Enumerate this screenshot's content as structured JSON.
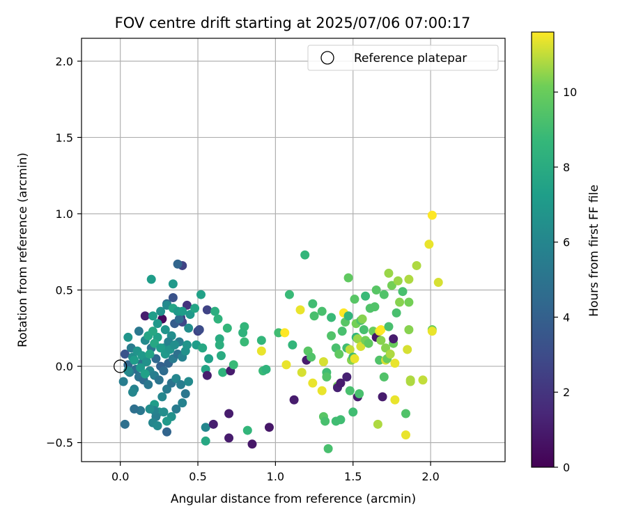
{
  "chart_data": {
    "type": "scatter",
    "title": "FOV centre drift starting at 2025/07/06 07:00:17",
    "xlabel": "Angular distance from reference (arcmin)",
    "ylabel": "Rotation from reference (arcmin)",
    "xlim": [
      -0.25,
      2.48
    ],
    "ylim": [
      -0.625,
      2.15
    ],
    "xticks": [
      0.0,
      0.5,
      1.0,
      1.5,
      2.0
    ],
    "xtick_labels": [
      "0.0",
      "0.5",
      "1.0",
      "1.5",
      "2.0"
    ],
    "yticks": [
      -0.5,
      0.0,
      0.5,
      1.0,
      1.5,
      2.0
    ],
    "ytick_labels": [
      "−0.5",
      "0.0",
      "0.5",
      "1.0",
      "1.5",
      "2.0"
    ],
    "grid": true,
    "legend": {
      "position": "top-right",
      "entries": [
        {
          "label": "Reference platepar",
          "marker": "open-circle"
        }
      ]
    },
    "reference_point": {
      "x": 0.0,
      "y": 0.0
    },
    "colorbar": {
      "label": "Hours from first FF file",
      "colormap": "viridis",
      "range": [
        0,
        11.6
      ],
      "ticks": [
        0,
        2,
        4,
        6,
        8,
        10
      ],
      "tick_labels": [
        "0",
        "2",
        "4",
        "6",
        "8",
        "10"
      ]
    },
    "points": [
      [
        0.27,
        0.31,
        0.3
      ],
      [
        0.16,
        0.33,
        1.1
      ],
      [
        0.43,
        0.4,
        1.9
      ],
      [
        0.39,
        0.32,
        2.4
      ],
      [
        0.4,
        0.29,
        2.8
      ],
      [
        0.4,
        0.66,
        2.6
      ],
      [
        0.37,
        0.67,
        4.2
      ],
      [
        0.5,
        0.23,
        2.6
      ],
      [
        0.51,
        0.24,
        3.0
      ],
      [
        0.56,
        0.37,
        2.6
      ],
      [
        0.34,
        0.45,
        3.3
      ],
      [
        0.35,
        0.28,
        3.8
      ],
      [
        0.38,
        0.31,
        4.5
      ],
      [
        0.3,
        0.41,
        4.8
      ],
      [
        0.03,
        0.08,
        3.4
      ],
      [
        0.05,
        0.01,
        4.4
      ],
      [
        0.1,
        -0.02,
        4.6
      ],
      [
        0.14,
        0.02,
        5.0
      ],
      [
        0.07,
        0.12,
        5.4
      ],
      [
        0.12,
        0.23,
        5.2
      ],
      [
        0.06,
        -0.04,
        5.6
      ],
      [
        0.02,
        -0.1,
        5.5
      ],
      [
        0.09,
        -0.15,
        5.8
      ],
      [
        0.08,
        -0.17,
        6.0
      ],
      [
        0.12,
        -0.07,
        5.0
      ],
      [
        0.15,
        -0.09,
        4.6
      ],
      [
        0.18,
        -0.12,
        5.2
      ],
      [
        0.16,
        0.17,
        6.2
      ],
      [
        0.2,
        0.12,
        5.0
      ],
      [
        0.23,
        0.05,
        4.4
      ],
      [
        0.26,
        0.0,
        4.0
      ],
      [
        0.28,
        -0.03,
        4.6
      ],
      [
        0.31,
        0.02,
        4.2
      ],
      [
        0.34,
        0.05,
        5.4
      ],
      [
        0.37,
        0.08,
        4.8
      ],
      [
        0.4,
        0.06,
        5.8
      ],
      [
        0.42,
        0.1,
        6.6
      ],
      [
        0.38,
        0.16,
        5.6
      ],
      [
        0.33,
        0.2,
        6.4
      ],
      [
        0.29,
        0.24,
        6.8
      ],
      [
        0.24,
        0.28,
        7.0
      ],
      [
        0.21,
        0.33,
        7.2
      ],
      [
        0.26,
        0.36,
        6.6
      ],
      [
        0.3,
        0.4,
        6.2
      ],
      [
        0.34,
        0.38,
        7.6
      ],
      [
        0.37,
        0.36,
        7.0
      ],
      [
        0.2,
        0.57,
        7.2
      ],
      [
        0.34,
        0.54,
        7.0
      ],
      [
        0.25,
        -0.3,
        6.8
      ],
      [
        0.22,
        -0.25,
        7.2
      ],
      [
        0.27,
        -0.2,
        6.0
      ],
      [
        0.3,
        -0.15,
        5.4
      ],
      [
        0.33,
        -0.11,
        5.0
      ],
      [
        0.36,
        -0.08,
        6.0
      ],
      [
        0.39,
        -0.12,
        5.6
      ],
      [
        0.42,
        -0.18,
        5.2
      ],
      [
        0.44,
        -0.1,
        6.2
      ],
      [
        0.4,
        -0.24,
        5.8
      ],
      [
        0.36,
        -0.28,
        5.4
      ],
      [
        0.33,
        -0.33,
        6.6
      ],
      [
        0.3,
        -0.36,
        7.0
      ],
      [
        0.28,
        -0.3,
        6.4
      ],
      [
        0.23,
        -0.33,
        5.6
      ],
      [
        0.21,
        -0.37,
        6.0
      ],
      [
        0.24,
        -0.39,
        6.2
      ],
      [
        0.3,
        -0.43,
        4.2
      ],
      [
        0.22,
        -0.29,
        5.8
      ],
      [
        0.19,
        -0.28,
        6.4
      ],
      [
        0.13,
        -0.29,
        5.2
      ],
      [
        0.09,
        -0.28,
        4.8
      ],
      [
        0.03,
        -0.38,
        4.8
      ],
      [
        0.05,
        -0.03,
        6.2
      ],
      [
        0.08,
        0.06,
        6.4
      ],
      [
        0.11,
        0.1,
        6.8
      ],
      [
        0.14,
        0.07,
        7.0
      ],
      [
        0.17,
        0.03,
        6.6
      ],
      [
        0.19,
        -0.03,
        6.0
      ],
      [
        0.22,
        -0.06,
        5.6
      ],
      [
        0.25,
        -0.09,
        5.0
      ],
      [
        0.28,
        0.12,
        6.6
      ],
      [
        0.31,
        0.16,
        5.8
      ],
      [
        0.24,
        0.19,
        7.4
      ],
      [
        0.22,
        0.15,
        7.8
      ],
      [
        0.19,
        0.08,
        7.6
      ],
      [
        0.26,
        0.12,
        7.2
      ],
      [
        0.29,
        0.08,
        7.0
      ],
      [
        0.32,
        0.11,
        6.8
      ],
      [
        0.35,
        0.14,
        6.4
      ],
      [
        0.05,
        0.19,
        6.8
      ],
      [
        0.09,
        0.04,
        7.2
      ],
      [
        0.13,
        -0.01,
        7.0
      ],
      [
        0.16,
        -0.05,
        7.4
      ],
      [
        0.18,
        0.2,
        7.6
      ],
      [
        0.21,
        0.23,
        7.8
      ],
      [
        0.4,
        0.36,
        7.2
      ],
      [
        0.45,
        0.34,
        7.0
      ],
      [
        0.48,
        0.38,
        7.6
      ],
      [
        0.43,
        0.14,
        6.8
      ],
      [
        0.44,
        0.25,
        6.4
      ],
      [
        0.49,
        0.14,
        7.2
      ],
      [
        0.52,
        0.47,
        7.4
      ],
      [
        0.53,
        0.12,
        7.8
      ],
      [
        0.55,
        -0.02,
        7.6
      ],
      [
        0.57,
        0.05,
        7.4
      ],
      [
        0.56,
        -0.06,
        1.1
      ],
      [
        0.55,
        -0.4,
        6.0
      ],
      [
        0.6,
        -0.38,
        1.1
      ],
      [
        0.55,
        -0.49,
        7.8
      ],
      [
        0.61,
        0.36,
        8.2
      ],
      [
        0.63,
        0.31,
        8.4
      ],
      [
        0.64,
        0.18,
        8.0
      ],
      [
        0.64,
        0.14,
        8.2
      ],
      [
        0.65,
        0.07,
        8.0
      ],
      [
        0.66,
        -0.04,
        8.4
      ],
      [
        0.69,
        0.25,
        8.6
      ],
      [
        0.71,
        -0.03,
        1.0
      ],
      [
        0.73,
        0.01,
        8.8
      ],
      [
        0.7,
        -0.31,
        1.0
      ],
      [
        0.7,
        -0.47,
        1.0
      ],
      [
        0.8,
        0.26,
        8.6
      ],
      [
        0.79,
        0.22,
        8.4
      ],
      [
        0.8,
        0.16,
        8.8
      ],
      [
        0.82,
        -0.42,
        8.6
      ],
      [
        0.85,
        -0.51,
        0.8
      ],
      [
        0.91,
        0.17,
        8.6
      ],
      [
        0.92,
        -0.03,
        8.8
      ],
      [
        0.94,
        -0.02,
        8.4
      ],
      [
        0.96,
        -0.4,
        0.8
      ],
      [
        0.91,
        0.1,
        11.4
      ],
      [
        1.02,
        0.22,
        9.0
      ],
      [
        1.06,
        0.22,
        11.6
      ],
      [
        1.07,
        0.01,
        11.4
      ],
      [
        1.09,
        0.47,
        8.8
      ],
      [
        1.11,
        0.14,
        8.6
      ],
      [
        1.12,
        -0.22,
        1.0
      ],
      [
        1.19,
        0.73,
        8.6
      ],
      [
        1.16,
        0.37,
        11.4
      ],
      [
        1.17,
        -0.04,
        11.2
      ],
      [
        1.21,
        0.1,
        9.6
      ],
      [
        1.2,
        0.04,
        1.0
      ],
      [
        1.23,
        0.06,
        9.4
      ],
      [
        1.24,
        0.41,
        9.0
      ],
      [
        1.25,
        0.33,
        9.2
      ],
      [
        1.24,
        -0.11,
        11.4
      ],
      [
        1.3,
        0.36,
        9.2
      ],
      [
        1.31,
        0.03,
        11.2
      ],
      [
        1.3,
        -0.16,
        11.4
      ],
      [
        1.31,
        -0.33,
        9.6
      ],
      [
        1.32,
        -0.36,
        9.2
      ],
      [
        1.33,
        -0.04,
        9.0
      ],
      [
        1.33,
        -0.07,
        9.4
      ],
      [
        1.34,
        -0.54,
        9.2
      ],
      [
        1.36,
        0.32,
        8.8
      ],
      [
        1.36,
        0.2,
        9.4
      ],
      [
        1.39,
        0.12,
        9.2
      ],
      [
        1.39,
        -0.36,
        9.0
      ],
      [
        1.42,
        -0.35,
        9.0
      ],
      [
        1.4,
        -0.13,
        10.2
      ],
      [
        1.4,
        -0.14,
        1.2
      ],
      [
        1.41,
        0.08,
        9.8
      ],
      [
        1.42,
        -0.11,
        1.0
      ],
      [
        1.43,
        0.23,
        9.2
      ],
      [
        1.44,
        0.35,
        11.6
      ],
      [
        1.45,
        0.29,
        9.6
      ],
      [
        1.46,
        0.12,
        9.0
      ],
      [
        1.47,
        0.58,
        9.8
      ],
      [
        1.46,
        -0.07,
        1.2
      ],
      [
        1.47,
        0.33,
        8.6
      ],
      [
        1.48,
        0.11,
        11.0
      ],
      [
        1.48,
        -0.16,
        9.2
      ],
      [
        1.49,
        0.04,
        10.4
      ],
      [
        1.5,
        0.06,
        9.0
      ],
      [
        1.5,
        -0.3,
        9.0
      ],
      [
        1.51,
        0.05,
        11.4
      ],
      [
        1.51,
        0.44,
        9.6
      ],
      [
        1.52,
        0.28,
        10.2
      ],
      [
        1.52,
        0.19,
        8.6
      ],
      [
        1.53,
        -0.2,
        1.0
      ],
      [
        1.53,
        0.18,
        10.6
      ],
      [
        1.54,
        -0.18,
        9.2
      ],
      [
        1.55,
        0.13,
        11.2
      ],
      [
        1.55,
        0.3,
        9.4
      ],
      [
        1.56,
        0.31,
        10.4
      ],
      [
        1.57,
        0.24,
        9.2
      ],
      [
        1.58,
        0.46,
        8.8
      ],
      [
        1.58,
        0.17,
        10.2
      ],
      [
        1.6,
        0.15,
        9.8
      ],
      [
        1.61,
        0.38,
        9.4
      ],
      [
        1.64,
        0.39,
        9.4
      ],
      [
        1.63,
        0.23,
        10.0
      ],
      [
        1.65,
        0.5,
        9.6
      ],
      [
        1.65,
        0.19,
        0.8
      ],
      [
        1.67,
        0.23,
        11.4
      ],
      [
        1.66,
        -0.38,
        10.8
      ],
      [
        1.67,
        0.04,
        9.4
      ],
      [
        1.68,
        0.24,
        11.6
      ],
      [
        1.68,
        0.17,
        10.4
      ],
      [
        1.69,
        -0.2,
        1.0
      ],
      [
        1.7,
        -0.07,
        9.4
      ],
      [
        1.7,
        0.47,
        9.4
      ],
      [
        1.71,
        0.12,
        10.4
      ],
      [
        1.71,
        0.04,
        11.2
      ],
      [
        1.72,
        0.05,
        10.0
      ],
      [
        1.73,
        0.26,
        9.2
      ],
      [
        1.73,
        0.61,
        10.6
      ],
      [
        1.74,
        0.08,
        10.8
      ],
      [
        1.75,
        0.53,
        10.2
      ],
      [
        1.76,
        0.15,
        10.0
      ],
      [
        1.76,
        0.18,
        1.0
      ],
      [
        1.77,
        0.02,
        11.4
      ],
      [
        1.77,
        -0.22,
        11.4
      ],
      [
        1.78,
        0.35,
        9.2
      ],
      [
        1.79,
        0.56,
        10.6
      ],
      [
        1.8,
        0.42,
        10.4
      ],
      [
        1.82,
        0.49,
        9.2
      ],
      [
        1.84,
        -0.31,
        9.4
      ],
      [
        1.84,
        -0.45,
        11.4
      ],
      [
        1.85,
        0.11,
        11.2
      ],
      [
        1.86,
        0.42,
        10.2
      ],
      [
        1.86,
        0.57,
        10.8
      ],
      [
        1.86,
        0.24,
        10.4
      ],
      [
        1.87,
        -0.09,
        10.8
      ],
      [
        1.87,
        -0.1,
        10.8
      ],
      [
        1.91,
        0.66,
        10.8
      ],
      [
        1.95,
        -0.09,
        11.0
      ],
      [
        1.99,
        0.8,
        11.4
      ],
      [
        2.01,
        0.99,
        11.6
      ],
      [
        2.01,
        0.24,
        10.0
      ],
      [
        2.01,
        0.23,
        11.4
      ],
      [
        2.05,
        0.55,
        11.2
      ]
    ]
  }
}
